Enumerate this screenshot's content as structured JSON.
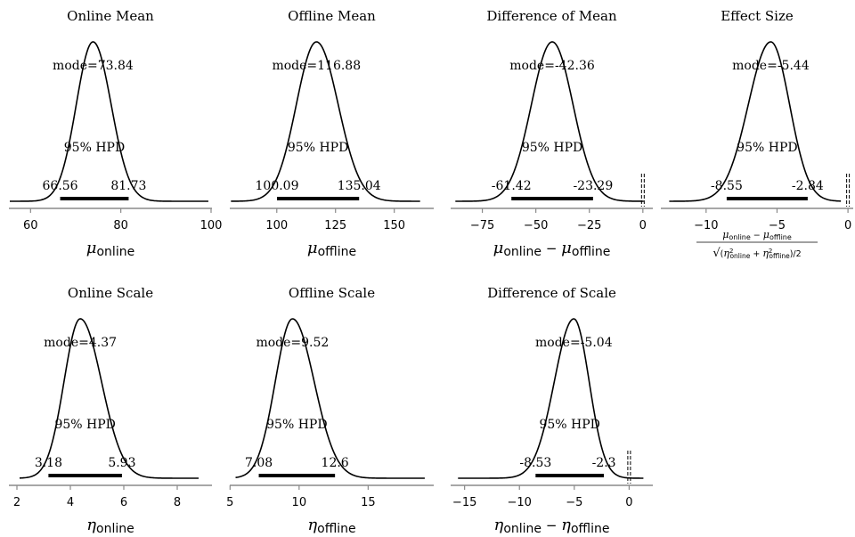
{
  "chart_data": [
    {
      "type": "area",
      "title": "Online Mean",
      "mode": 73.84,
      "mode_label": "mode=73.84",
      "hpd": [
        66.56,
        81.73
      ],
      "hpd_low_label": "66.56",
      "hpd_high_label": "81.73",
      "hpd_text": "95% HPD",
      "xlim": [
        55.2,
        100.2
      ],
      "ticks": [
        60,
        80,
        100
      ],
      "tick_labels": [
        "60",
        "80",
        "100"
      ],
      "curve_range": [
        55.4,
        99.4
      ],
      "xlabel": {
        "sym": "μ",
        "sub": "online",
        "sub2": ""
      },
      "ref_line": null
    },
    {
      "type": "area",
      "title": "Offline Mean",
      "mode": 116.88,
      "mode_label": "mode=116.88",
      "hpd": [
        100.09,
        135.04
      ],
      "hpd_low_label": "100.09",
      "hpd_high_label": "135.04",
      "hpd_text": "95% HPD",
      "xlim": [
        80,
        166.8
      ],
      "ticks": [
        100,
        125,
        150
      ],
      "tick_labels": [
        "100",
        "125",
        "150"
      ],
      "curve_range": [
        80.5,
        161
      ],
      "xlabel": {
        "sym": "μ",
        "sub": "offline",
        "sub2": ""
      },
      "ref_line": null
    },
    {
      "type": "area",
      "title": "Difference of Mean",
      "mode": -42.36,
      "mode_label": "mode=-42.36",
      "hpd": [
        -61.42,
        -23.29
      ],
      "hpd_low_label": "-61.42",
      "hpd_high_label": "-23.29",
      "hpd_text": "95% HPD",
      "xlim": [
        -89.8,
        4.65
      ],
      "ticks": [
        -75,
        -50,
        -25,
        0
      ],
      "tick_labels": [
        "−75",
        "−50",
        "−25",
        "0"
      ],
      "curve_range": [
        -87.6,
        0.4
      ],
      "xlabel": {
        "sym": "μ",
        "sub": "online",
        "sub2": "offline"
      },
      "ref_line": 0
    },
    {
      "type": "area",
      "title": "Effect Size",
      "mode": -5.44,
      "mode_label": "mode=-5.44",
      "hpd": [
        -8.55,
        -2.84
      ],
      "hpd_low_label": "-8.55",
      "hpd_high_label": "-2.84",
      "hpd_text": "95% HPD",
      "xlim": [
        -13.19,
        0.37
      ],
      "ticks": [
        -10,
        -5,
        0
      ],
      "tick_labels": [
        "−10",
        "−5",
        "0"
      ],
      "curve_range": [
        -12.6,
        -0.5
      ],
      "xlabel": {
        "effect": true,
        "num": {
          "a_sym": "μ",
          "a_sub": "online",
          "b_sym": "μ",
          "b_sub": "offline"
        },
        "den": {
          "pre": "√",
          "open": "(",
          "a_sym": "η",
          "a_sub": "online",
          "b_sym": "η",
          "b_sub": "offline",
          "sup": "2",
          "close": ")/2"
        }
      },
      "ref_line": 0
    },
    {
      "type": "area",
      "title": "Online Scale",
      "mode": 4.37,
      "mode_label": "mode=4.37",
      "hpd": [
        3.18,
        5.93
      ],
      "hpd_low_label": "3.18",
      "hpd_high_label": "5.93",
      "hpd_text": "95% HPD",
      "xlim": [
        1.7,
        9.3
      ],
      "ticks": [
        2,
        4,
        6,
        8
      ],
      "tick_labels": [
        "2",
        "4",
        "6",
        "8"
      ],
      "curve_range": [
        2.1,
        8.8
      ],
      "xlabel": {
        "sym": "η",
        "sub": "online",
        "sub2": ""
      },
      "ref_line": null
    },
    {
      "type": "area",
      "title": "Offline Scale",
      "mode": 9.52,
      "mode_label": "mode=9.52",
      "hpd": [
        7.08,
        12.6
      ],
      "hpd_low_label": "7.08",
      "hpd_high_label": "12.6",
      "hpd_text": "95% HPD",
      "xlim": [
        4.98,
        19.75
      ],
      "ticks": [
        5,
        10,
        15
      ],
      "tick_labels": [
        "5",
        "10",
        "15"
      ],
      "curve_range": [
        5.4,
        19.1
      ],
      "xlabel": {
        "sym": "η",
        "sub": "offline",
        "sub2": ""
      },
      "ref_line": null
    },
    {
      "type": "area",
      "title": "Difference of Scale",
      "mode": -5.04,
      "mode_label": "mode=-5.04",
      "hpd": [
        -8.53,
        -2.3
      ],
      "hpd_low_label": "-8.53",
      "hpd_high_label": "-2.3",
      "hpd_text": "95% HPD",
      "xlim": [
        -16.27,
        2.16
      ],
      "ticks": [
        -15,
        -10,
        -5,
        0
      ],
      "tick_labels": [
        "−15",
        "−10",
        "−5",
        "0"
      ],
      "curve_range": [
        -15.6,
        1.3
      ],
      "xlabel": {
        "sym": "η",
        "sub": "online",
        "sub2": "offline"
      },
      "ref_line": 0
    }
  ]
}
